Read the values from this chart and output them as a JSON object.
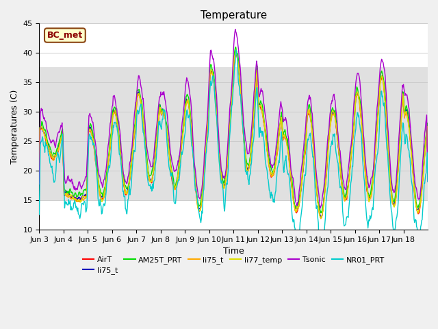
{
  "title": "Temperature",
  "ylabel": "Temperatures (C)",
  "xlabel": "Time",
  "ylim": [
    10,
    45
  ],
  "shaded_band": [
    15,
    37.5
  ],
  "annotation_text": "BC_met",
  "background_color": "#f0f0f0",
  "plot_bg_color": "#ffffff",
  "grid_color": "#cccccc",
  "title_fontsize": 11,
  "label_fontsize": 9,
  "tick_fontsize": 8,
  "x_tick_labels": [
    "Jun 3",
    "Jun 4",
    "Jun 5",
    "Jun 6",
    "Jun 7",
    "Jun 8",
    "Jun 9",
    "Jun 10",
    "Jun 11",
    "Jun 12",
    "Jun 13",
    "Jun 14",
    "Jun 15",
    "Jun 16",
    "Jun 17",
    "Jun 18"
  ],
  "legend_entries": [
    "AirT",
    "li75_t",
    "AM25T_PRT",
    "li75_t",
    "li77_temp",
    "Tsonic",
    "NR01_PRT"
  ],
  "legend_colors": [
    "#ff0000",
    "#0000bb",
    "#00dd00",
    "#ffaa00",
    "#dddd00",
    "#aa00cc",
    "#00cccc"
  ]
}
